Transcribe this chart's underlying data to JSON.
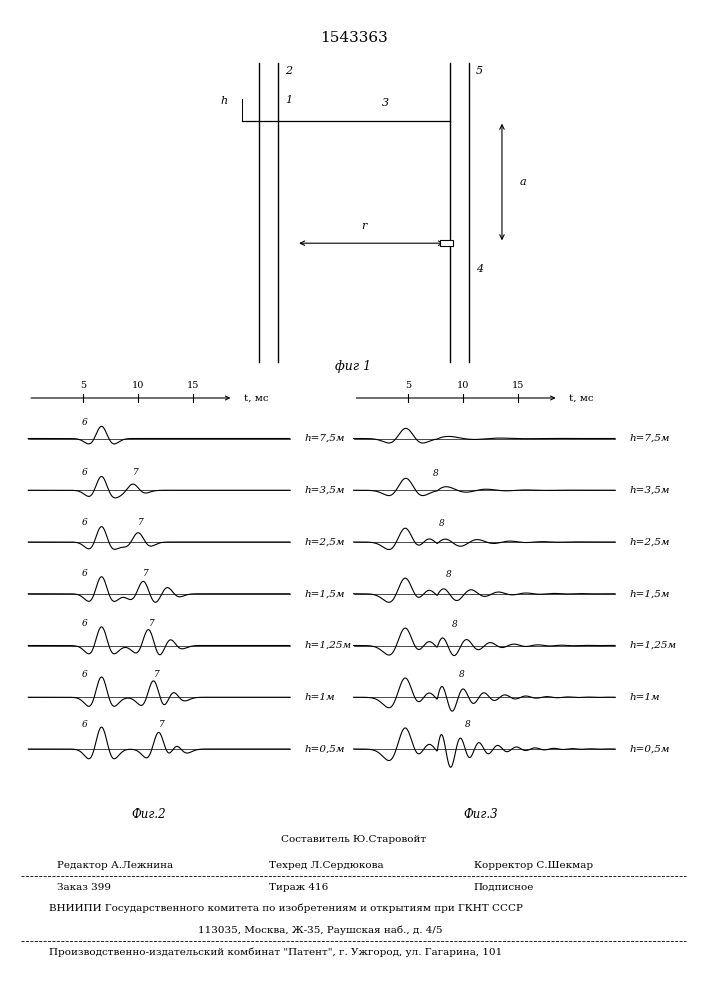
{
  "title": "1543363",
  "fig1_caption": "фиг 1",
  "fig2_caption": "Фиг.2",
  "fig3_caption": "Фиг.3",
  "bottom_text_lines": [
    "Составитель Ю.Старовойт",
    "Редактор А.Лежнина",
    "Техред Л.Сердюкова",
    "Корректор С.Шекмар",
    "Заказ 399",
    "Тираж 416",
    "Подписное",
    "ВНИИПИ Государственного комитета по изобретениям и открытиям при ГКНТ СССР",
    "113035, Москва, Ж-35, Раушская наб., д. 4/5",
    "Производственно-издательский комбинат \"Патент\", г. Ужгород, ул. Гагарина, 101"
  ],
  "fig2_labels": [
    "h=7,5м",
    "h=3,5м",
    "h=2,5м",
    "h=1,5м",
    "h=1,25м",
    "h=1м",
    "h=0,5м"
  ],
  "fig3_labels": [
    "h=7,5м",
    "h=3,5м",
    "h=2,5м",
    "h=1,5м",
    "h=1,25м",
    "h=1м",
    "h=0,5м"
  ],
  "t_axis_label": "t, мс",
  "t_ticks": [
    5,
    10,
    15
  ]
}
